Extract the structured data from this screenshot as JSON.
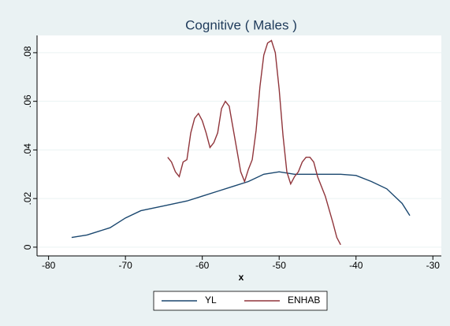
{
  "chart_data": {
    "type": "line",
    "title": "Cognitive ( Males )",
    "x_label": "x",
    "xlim": [
      -81.5,
      -28.9
    ],
    "ylim": [
      -0.0036,
      0.0871
    ],
    "xticks": [
      -80,
      -70,
      -60,
      -50,
      -40,
      -30
    ],
    "yticks": [
      0,
      {
        "value": 0.02,
        "label": ".02"
      },
      {
        "value": 0.04,
        "label": ".04"
      },
      {
        "value": 0.06,
        "label": ".06"
      },
      {
        "value": 0.08,
        "label": ".08"
      }
    ],
    "grid": true,
    "legend": "bottom",
    "series": [
      {
        "name": "YL",
        "color": "#1a476f",
        "x": [
          -77,
          -75,
          -72,
          -70,
          -68,
          -65,
          -62,
          -60,
          -58,
          -56,
          -54,
          -52,
          -50,
          -48,
          -46,
          -44,
          -42,
          -40,
          -38,
          -36,
          -34,
          -33
        ],
        "values": [
          0.004,
          0.005,
          0.008,
          0.012,
          0.015,
          0.017,
          0.019,
          0.021,
          0.023,
          0.025,
          0.027,
          0.03,
          0.031,
          0.03,
          0.03,
          0.03,
          0.03,
          0.0295,
          0.027,
          0.024,
          0.018,
          0.013
        ]
      },
      {
        "name": "ENHAB",
        "color": "#90353b",
        "x": [
          -64.5,
          -64,
          -63.5,
          -63,
          -62.5,
          -62,
          -61.5,
          -61,
          -60.5,
          -60,
          -59.5,
          -59,
          -58.5,
          -58,
          -57.5,
          -57,
          -56.5,
          -56,
          -55.5,
          -55,
          -54.5,
          -54,
          -53.5,
          -53,
          -52.5,
          -52,
          -51.5,
          -51,
          -50.5,
          -50,
          -49.5,
          -49,
          -48.5,
          -48,
          -47.5,
          -47,
          -46.5,
          -46,
          -45.5,
          -45,
          -44,
          -43,
          -42.5,
          -42
        ],
        "values": [
          0.037,
          0.035,
          0.031,
          0.029,
          0.035,
          0.036,
          0.047,
          0.053,
          0.055,
          0.052,
          0.047,
          0.041,
          0.043,
          0.047,
          0.057,
          0.06,
          0.058,
          0.049,
          0.04,
          0.031,
          0.027,
          0.032,
          0.036,
          0.048,
          0.066,
          0.079,
          0.084,
          0.085,
          0.08,
          0.065,
          0.046,
          0.031,
          0.026,
          0.029,
          0.031,
          0.035,
          0.037,
          0.037,
          0.035,
          0.029,
          0.021,
          0.01,
          0.004,
          0.001
        ]
      }
    ]
  }
}
